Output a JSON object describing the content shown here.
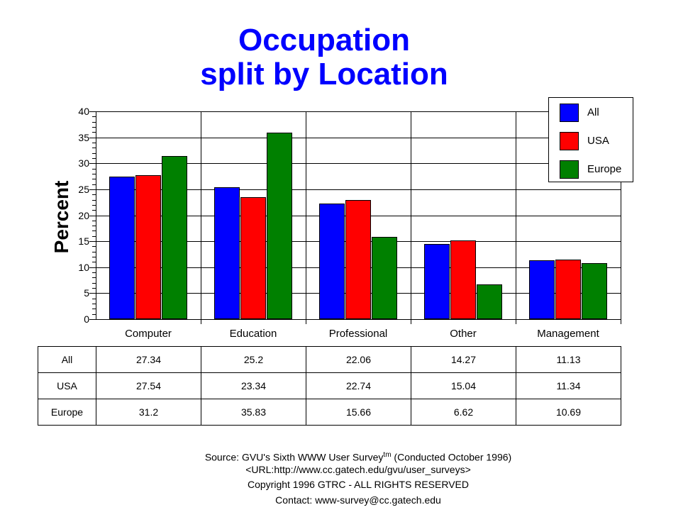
{
  "title_line1": "Occupation",
  "title_line2": "split by Location",
  "chart_data": {
    "type": "bar",
    "title": "Occupation split by Location",
    "xlabel": "",
    "ylabel": "Percent",
    "ylim": [
      0,
      40
    ],
    "yticks": [
      "0",
      "5",
      "10",
      "15",
      "20",
      "25",
      "30",
      "35",
      "40"
    ],
    "grid": true,
    "legend_position": "top-right",
    "categories": [
      "Computer",
      "Education",
      "Professional",
      "Other",
      "Management"
    ],
    "series": [
      {
        "name": "All",
        "color": "#0000ff",
        "values": [
          27.34,
          25.2,
          22.06,
          14.27,
          11.13
        ]
      },
      {
        "name": "USA",
        "color": "#ff0000",
        "values": [
          27.54,
          23.34,
          22.74,
          15.04,
          11.34
        ]
      },
      {
        "name": "Europe",
        "color": "#008000",
        "values": [
          31.2,
          35.83,
          15.66,
          6.62,
          10.69
        ]
      }
    ]
  },
  "table": {
    "rows": [
      {
        "label": "All",
        "cells": [
          "27.34",
          "25.2",
          "22.06",
          "14.27",
          "11.13"
        ]
      },
      {
        "label": "USA",
        "cells": [
          "27.54",
          "23.34",
          "22.74",
          "15.04",
          "11.34"
        ]
      },
      {
        "label": "Europe",
        "cells": [
          "31.2",
          "35.83",
          "15.66",
          "6.62",
          "10.69"
        ]
      }
    ]
  },
  "footer": {
    "source": "Source: GVU's Sixth WWW User Survey",
    "tm": "tm",
    "conducted": " (Conducted October 1996)",
    "url": "<URL:http://www.cc.gatech.edu/gvu/user_surveys>",
    "copyright": "Copyright 1996 GTRC -  ALL RIGHTS RESERVED",
    "contact": "Contact: www-survey@cc.gatech.edu"
  }
}
